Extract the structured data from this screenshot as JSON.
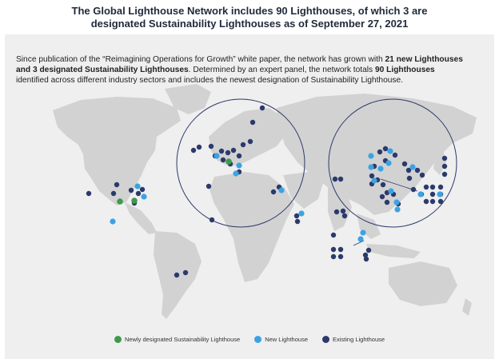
{
  "title_line1": "The Global Lighthouse Network includes 90 Lighthouses, of which 3 are",
  "title_line2": "designated Sustainability Lighthouses as of September 27, 2021",
  "intro": {
    "p1": "Since publication of the “Reimagining Operations for Growth” white paper, the network has grown with ",
    "b1": "21 new Lighthouses",
    "p2": "and 3 designated Sustainability Lighthouses",
    "p3": ". Determined by an expert panel, the network totals ",
    "b3": "90 Lighthouses",
    "p4": "identified across different industry sectors and includes the newest designation of Sustainability Lighthouse."
  },
  "legend": [
    {
      "label": "Newly designated Sustainability Lighthouse",
      "color": "#3f9a4c"
    },
    {
      "label": "New Lighthouse",
      "color": "#3aa3e3"
    },
    {
      "label": "Existing Lighthouse",
      "color": "#2b3a6b"
    }
  ],
  "colors": {
    "land": "#d2d2d2",
    "panel": "#efefef",
    "circle_stroke": "#2b3a6b"
  }
}
